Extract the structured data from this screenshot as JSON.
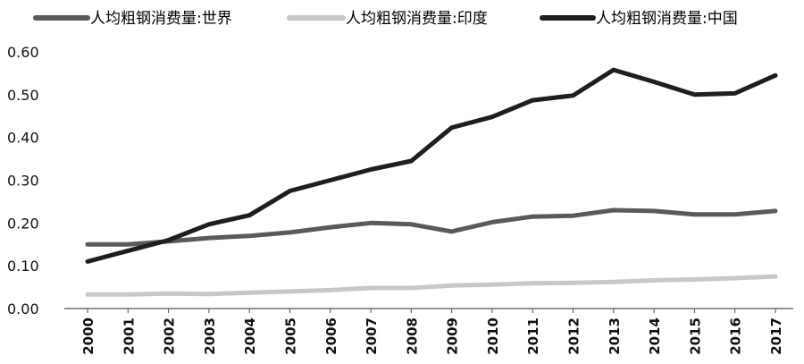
{
  "chart_data": {
    "type": "line",
    "title": "",
    "xlabel": "",
    "ylabel": "",
    "x": [
      "2000",
      "2001",
      "2002",
      "2003",
      "2004",
      "2005",
      "2006",
      "2007",
      "2008",
      "2009",
      "2010",
      "2011",
      "2012",
      "2013",
      "2014",
      "2015",
      "2016",
      "2017"
    ],
    "ylim": [
      0,
      0.6
    ],
    "yticks": [
      "0.00",
      "0.10",
      "0.20",
      "0.30",
      "0.40",
      "0.50",
      "0.60"
    ],
    "grid": false,
    "legend_position": "top",
    "series": [
      {
        "name": "人均粗钢消费量:世界",
        "color": "#5a5a5a",
        "values": [
          0.15,
          0.15,
          0.157,
          0.165,
          0.17,
          0.178,
          0.19,
          0.2,
          0.197,
          0.18,
          0.202,
          0.215,
          0.217,
          0.23,
          0.228,
          0.22,
          0.22,
          0.228
        ]
      },
      {
        "name": "人均粗钢消费量:印度",
        "color": "#c8c8c8",
        "values": [
          0.033,
          0.033,
          0.035,
          0.034,
          0.037,
          0.04,
          0.043,
          0.048,
          0.048,
          0.054,
          0.056,
          0.059,
          0.06,
          0.062,
          0.066,
          0.068,
          0.071,
          0.075
        ]
      },
      {
        "name": "人均粗钢消费量:中国",
        "color": "#1e1e1e",
        "values": [
          0.11,
          0.135,
          0.16,
          0.197,
          0.218,
          0.275,
          0.3,
          0.325,
          0.345,
          0.423,
          0.448,
          0.487,
          0.498,
          0.558,
          0.53,
          0.5,
          0.503,
          0.545
        ]
      }
    ]
  }
}
